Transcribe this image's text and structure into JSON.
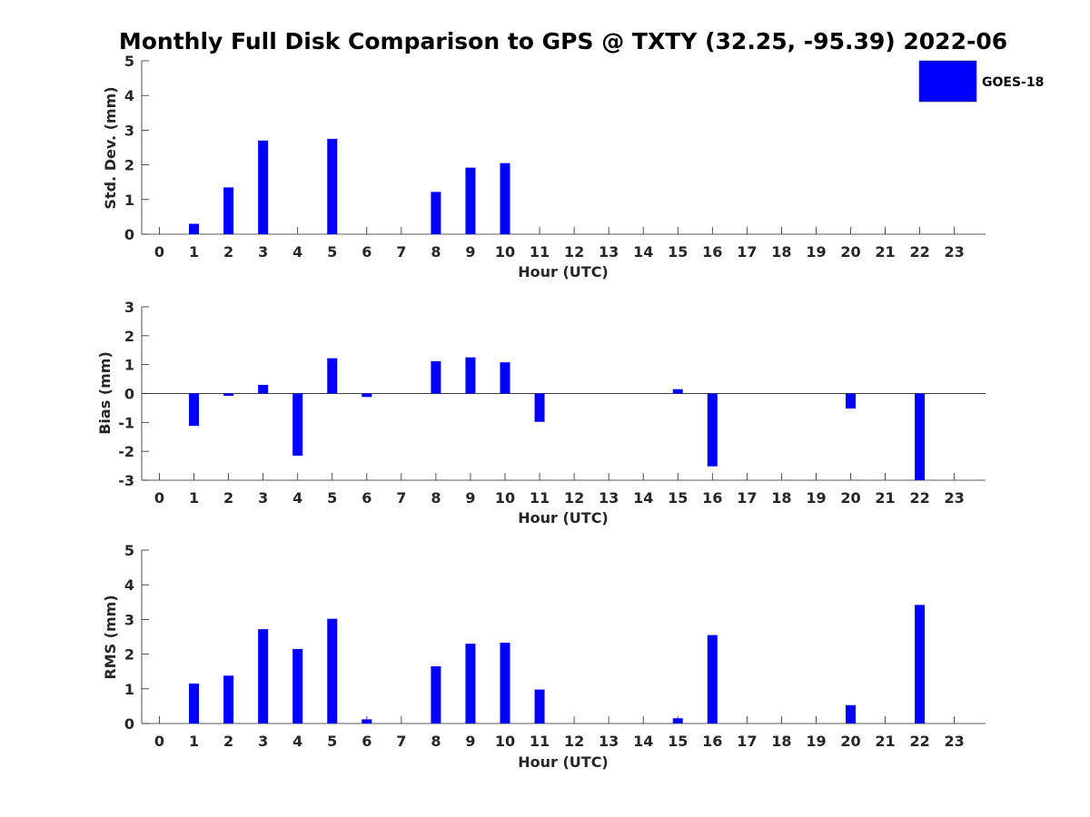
{
  "chart_data": {
    "title": "Monthly Full Disk Comparison to GPS @ TXTY (32.25, -95.39) 2022-06",
    "legend": {
      "entries": [
        "GOES-18"
      ],
      "placement": "top-right"
    },
    "colors": {
      "bar": "#0000ff",
      "axis": "#262626"
    },
    "panels": [
      {
        "type": "bar",
        "ylabel": "Std. Dev. (mm)",
        "xlabel": "Hour (UTC)",
        "ylim": [
          0,
          5
        ],
        "yticks": [
          0,
          1,
          2,
          3,
          4,
          5
        ],
        "zero_line": false,
        "categories": [
          "0",
          "1",
          "2",
          "3",
          "4",
          "5",
          "6",
          "7",
          "8",
          "9",
          "10",
          "11",
          "12",
          "13",
          "14",
          "15",
          "16",
          "17",
          "18",
          "19",
          "20",
          "21",
          "22",
          "23"
        ],
        "series": [
          {
            "name": "GOES-18",
            "values": [
              0,
              0.3,
              1.35,
              2.7,
              0,
              2.75,
              0,
              0,
              1.22,
              1.92,
              2.05,
              0,
              0,
              0,
              0,
              0,
              0,
              0,
              0,
              0,
              0,
              0,
              0,
              0
            ]
          }
        ]
      },
      {
        "type": "bar",
        "ylabel": "Bias (mm)",
        "xlabel": "Hour (UTC)",
        "ylim": [
          -3,
          3
        ],
        "yticks": [
          -3,
          -2,
          -1,
          0,
          1,
          2,
          3
        ],
        "zero_line": true,
        "categories": [
          "0",
          "1",
          "2",
          "3",
          "4",
          "5",
          "6",
          "7",
          "8",
          "9",
          "10",
          "11",
          "12",
          "13",
          "14",
          "15",
          "16",
          "17",
          "18",
          "19",
          "20",
          "21",
          "22",
          "23"
        ],
        "series": [
          {
            "name": "GOES-18",
            "values": [
              0,
              -1.12,
              -0.08,
              0.3,
              -2.15,
              1.22,
              -0.12,
              0,
              1.12,
              1.25,
              1.08,
              -0.98,
              0,
              0,
              0,
              0.15,
              -2.52,
              0,
              0,
              0,
              -0.52,
              0,
              -3.0,
              0
            ]
          }
        ]
      },
      {
        "type": "bar",
        "ylabel": "RMS (mm)",
        "xlabel": "Hour (UTC)",
        "ylim": [
          0,
          5
        ],
        "yticks": [
          0,
          1,
          2,
          3,
          4,
          5
        ],
        "zero_line": false,
        "categories": [
          "0",
          "1",
          "2",
          "3",
          "4",
          "5",
          "6",
          "7",
          "8",
          "9",
          "10",
          "11",
          "12",
          "13",
          "14",
          "15",
          "16",
          "17",
          "18",
          "19",
          "20",
          "21",
          "22",
          "23"
        ],
        "series": [
          {
            "name": "GOES-18",
            "values": [
              0,
              1.15,
              1.38,
              2.72,
              2.15,
              3.02,
              0.12,
              0,
              1.65,
              2.3,
              2.33,
              0.98,
              0,
              0,
              0,
              0.15,
              2.55,
              0,
              0,
              0,
              0.53,
              0,
              3.42,
              0
            ]
          }
        ]
      }
    ]
  }
}
